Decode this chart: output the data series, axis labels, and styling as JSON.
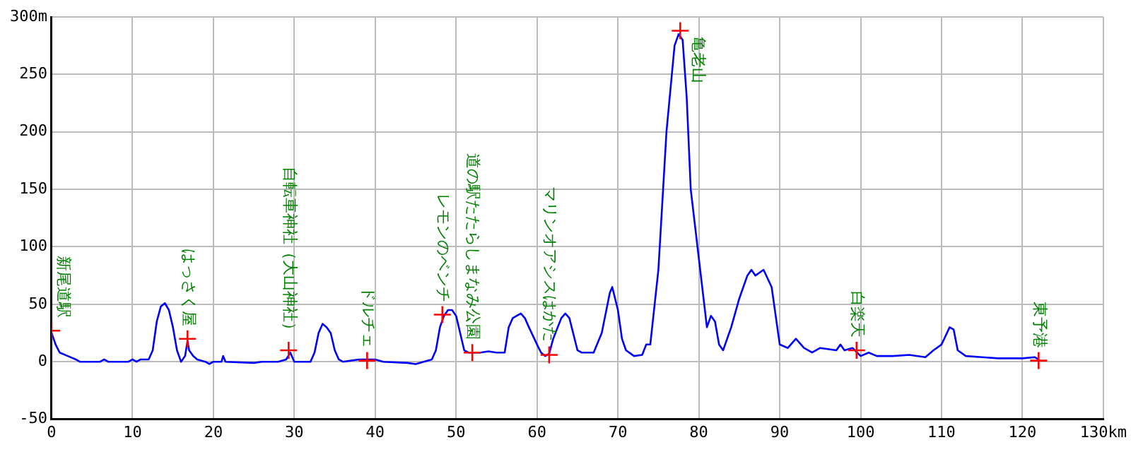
{
  "chart_data": {
    "type": "line",
    "xlim": [
      0,
      130
    ],
    "xticks": [
      0,
      10,
      20,
      30,
      40,
      50,
      60,
      70,
      80,
      90,
      100,
      110,
      120,
      {
        "value": 130,
        "label": "130km"
      }
    ],
    "ylim": [
      -50,
      300
    ],
    "yticks": [
      -50,
      0,
      50,
      100,
      150,
      200,
      250,
      {
        "value": 300,
        "label": "300m"
      }
    ],
    "grid": true,
    "legend": false,
    "series": [
      {
        "type": "line",
        "color": "#0000ff",
        "marker": "none",
        "line_style": "solid",
        "x": [
          0,
          0.5,
          1,
          2,
          3,
          3.5,
          6,
          6.5,
          7,
          9.5,
          10,
          10.5,
          11,
          12,
          12.5,
          13,
          13.5,
          14,
          14.5,
          15,
          15.5,
          16,
          16.5,
          16.8,
          17,
          17.5,
          18,
          19,
          19.5,
          20,
          21,
          21.2,
          21.5,
          25,
          26,
          28,
          29,
          29.5,
          30,
          32,
          32.5,
          33,
          33.5,
          34,
          34.5,
          35,
          35.5,
          36,
          37,
          38,
          40,
          41,
          44,
          45,
          46,
          47,
          47.5,
          48,
          48.5,
          49,
          49.5,
          50,
          50.5,
          51,
          51.5,
          52,
          53,
          54,
          55,
          56,
          56.5,
          57,
          58,
          58.5,
          59,
          60,
          60.5,
          61,
          61.5,
          62,
          63,
          63.5,
          64,
          65,
          65.5,
          67,
          68,
          69,
          69.3,
          70,
          70.5,
          71,
          72,
          73,
          73.5,
          74,
          75,
          76,
          77,
          77.5,
          78,
          78.5,
          79,
          80,
          80.5,
          81,
          81.5,
          82,
          82.5,
          83,
          84,
          85,
          86,
          86.5,
          87,
          88,
          89,
          89.5,
          90,
          91,
          92,
          93,
          94,
          95,
          97,
          97.5,
          98,
          99,
          100,
          101,
          102,
          104,
          106,
          108,
          109,
          110,
          111,
          111.5,
          112,
          113,
          115,
          117,
          120,
          121.5,
          122
        ],
        "values": [
          25,
          15,
          8,
          5,
          2,
          0,
          0,
          2,
          0,
          0,
          2,
          0,
          2,
          2,
          10,
          35,
          48,
          51,
          45,
          30,
          10,
          0,
          5,
          18,
          10,
          5,
          2,
          0,
          -2,
          0,
          0,
          5,
          0,
          -1,
          0,
          0,
          2,
          8,
          0,
          0,
          8,
          25,
          33,
          30,
          25,
          10,
          2,
          0,
          1,
          2,
          2,
          0,
          -1,
          -2,
          0,
          2,
          10,
          30,
          40,
          45,
          45,
          40,
          25,
          10,
          8,
          8,
          8,
          9,
          8,
          8,
          30,
          38,
          42,
          38,
          30,
          15,
          8,
          5,
          7,
          20,
          38,
          42,
          38,
          10,
          8,
          8,
          25,
          60,
          65,
          45,
          20,
          10,
          5,
          6,
          15,
          15,
          80,
          200,
          275,
          285,
          280,
          230,
          150,
          90,
          60,
          30,
          40,
          35,
          15,
          10,
          30,
          55,
          75,
          80,
          75,
          80,
          65,
          40,
          15,
          12,
          20,
          12,
          8,
          12,
          10,
          15,
          10,
          12,
          5,
          8,
          5,
          5,
          6,
          4,
          10,
          15,
          30,
          28,
          10,
          5,
          4,
          3,
          3,
          4,
          2
        ]
      },
      {
        "type": "scatter",
        "color": "#ff0000",
        "marker": "cross",
        "x": [
          0,
          16.8,
          29.3,
          39,
          48.3,
          52,
          61.5,
          77.7,
          99.5,
          122
        ],
        "values": [
          27,
          20,
          10,
          1,
          41,
          8,
          6,
          288,
          10,
          1
        ]
      }
    ],
    "annotations": [
      {
        "text": "新尾道駅",
        "x": 0,
        "y": 27
      },
      {
        "text": "はっさく屋",
        "x": 16.8,
        "y": 20
      },
      {
        "text": "自転車神社（大山神社）",
        "x": 29.3,
        "y": 10
      },
      {
        "text": "ドルチェ",
        "x": 39,
        "y": 1
      },
      {
        "text": "レモンのベンチ",
        "x": 48.3,
        "y": 41
      },
      {
        "text": "道の駅たたらしまなみ公園",
        "x": 52,
        "y": 8
      },
      {
        "text": "マリンオアシスはかた",
        "x": 61.5,
        "y": 6
      },
      {
        "text": "亀老山",
        "x": 77.7,
        "y": 288
      },
      {
        "text": "白楽天",
        "x": 99.5,
        "y": 10
      },
      {
        "text": "東予港",
        "x": 122,
        "y": 1
      }
    ]
  }
}
